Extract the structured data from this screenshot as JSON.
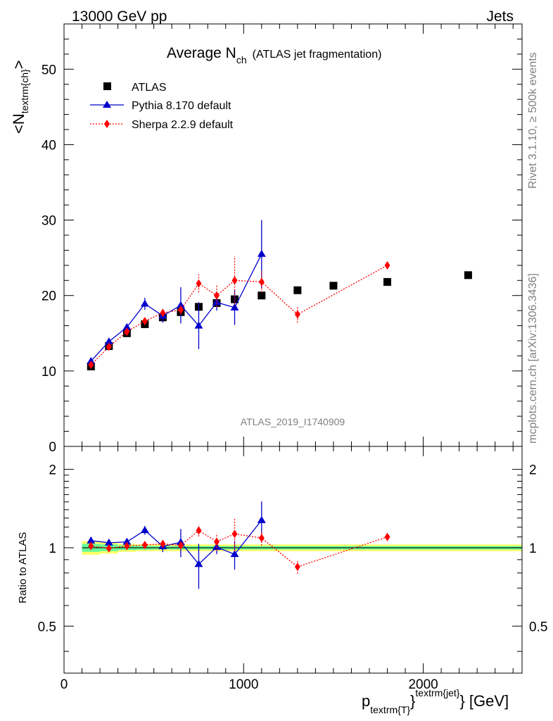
{
  "header": {
    "left": "13000 GeV pp",
    "right": "Jets"
  },
  "side_labels": {
    "rivet": "Rivet 3.1.10, ≥ 500k events",
    "mcplots": "mcplots.cern.ch [arXiv:1306.3436]"
  },
  "watermark": "ATLAS_2019_I1740909",
  "chart_data": {
    "type": "scatter",
    "title_main": "Average N",
    "title_sub": "ch",
    "title_paren": "(ATLAS jet fragmentation)",
    "ylabel_main": "<N",
    "ylabel_sub": "textrm{ch}",
    "ylabel_close": ">",
    "xlabel_p": "p",
    "xlabel_sub": "textrm{T}",
    "xlabel_brace": "}",
    "xlabel_sup": "textrm{jet}",
    "xlabel_tail": "} [GeV]",
    "ratio_ylabel": "Ratio to ATLAS",
    "xlim": [
      0,
      2550
    ],
    "ylim": [
      0,
      56
    ],
    "ratio_ylim": [
      0.33,
      2.45
    ],
    "ratio_scale": "log",
    "x_ticks": [
      "0",
      "1000",
      "2000"
    ],
    "y_ticks": [
      "0",
      "10",
      "20",
      "30",
      "40",
      "50"
    ],
    "ratio_ticks": [
      "0.5",
      "1",
      "2"
    ],
    "legend_position": "top-left",
    "series": [
      {
        "name": "ATLAS",
        "color": "#000000",
        "marker": "square",
        "line": "none",
        "x": [
          150,
          250,
          350,
          450,
          550,
          650,
          750,
          850,
          950,
          1100,
          1300,
          1500,
          1800,
          2250
        ],
        "y": [
          10.6,
          13.3,
          15.0,
          16.2,
          17.1,
          17.8,
          18.5,
          19.0,
          19.5,
          20.0,
          20.7,
          21.3,
          21.8,
          22.7
        ]
      },
      {
        "name": "Pythia 8.170 default",
        "color": "#0000cc",
        "marker": "triangle",
        "line": "solid",
        "x": [
          150,
          250,
          350,
          450,
          550,
          650,
          750,
          850,
          950,
          1100
        ],
        "y": [
          11.3,
          13.9,
          15.8,
          18.9,
          17.3,
          18.7,
          16.0,
          19.1,
          18.4,
          25.5
        ],
        "yerr": [
          0.3,
          0.3,
          0.4,
          0.8,
          0.9,
          2.4,
          3.1,
          1.1,
          2.3,
          4.5
        ],
        "ratio": [
          1.065,
          1.045,
          1.053,
          1.167,
          1.012,
          1.05,
          0.865,
          1.005,
          0.944,
          1.275
        ],
        "ratio_err": [
          0.02,
          0.02,
          0.025,
          0.045,
          0.05,
          0.13,
          0.17,
          0.06,
          0.12,
          0.23
        ]
      },
      {
        "name": "Sherpa 2.2.9 default",
        "color": "#ff0000",
        "marker": "diamond",
        "line": "dotted",
        "x": [
          150,
          250,
          350,
          450,
          550,
          650,
          750,
          850,
          950,
          1100,
          1300,
          1800
        ],
        "y": [
          10.8,
          13.2,
          15.2,
          16.6,
          17.7,
          18.1,
          21.6,
          20.0,
          22.0,
          21.8,
          17.5,
          24.0
        ],
        "yerr": [
          0.2,
          0.2,
          0.3,
          0.3,
          0.4,
          0.6,
          1.2,
          1.5,
          3.2,
          1.4,
          1.1,
          0.3
        ],
        "ratio": [
          1.015,
          0.995,
          1.015,
          1.025,
          1.035,
          1.02,
          1.165,
          1.055,
          1.13,
          1.09,
          0.845,
          1.1
        ],
        "ratio_err": [
          0.015,
          0.015,
          0.02,
          0.02,
          0.025,
          0.035,
          0.06,
          0.08,
          0.16,
          0.07,
          0.05,
          0.015
        ]
      }
    ],
    "ratio_band": {
      "x": [
        100,
        200,
        300,
        400,
        500,
        600,
        700,
        800,
        900,
        1000,
        1200,
        1400,
        1600,
        2000,
        2550
      ],
      "inner_halfwidth": [
        0.035,
        0.03,
        0.02,
        0.018,
        0.015,
        0.015,
        0.015,
        0.015,
        0.015,
        0.015,
        0.015,
        0.015,
        0.015,
        0.015
      ],
      "outer_halfwidth": [
        0.06,
        0.05,
        0.035,
        0.03,
        0.03,
        0.03,
        0.03,
        0.03,
        0.03,
        0.03,
        0.03,
        0.03,
        0.03,
        0.03
      ],
      "inner_color": "#66ff99",
      "outer_color": "#ffff66"
    }
  }
}
